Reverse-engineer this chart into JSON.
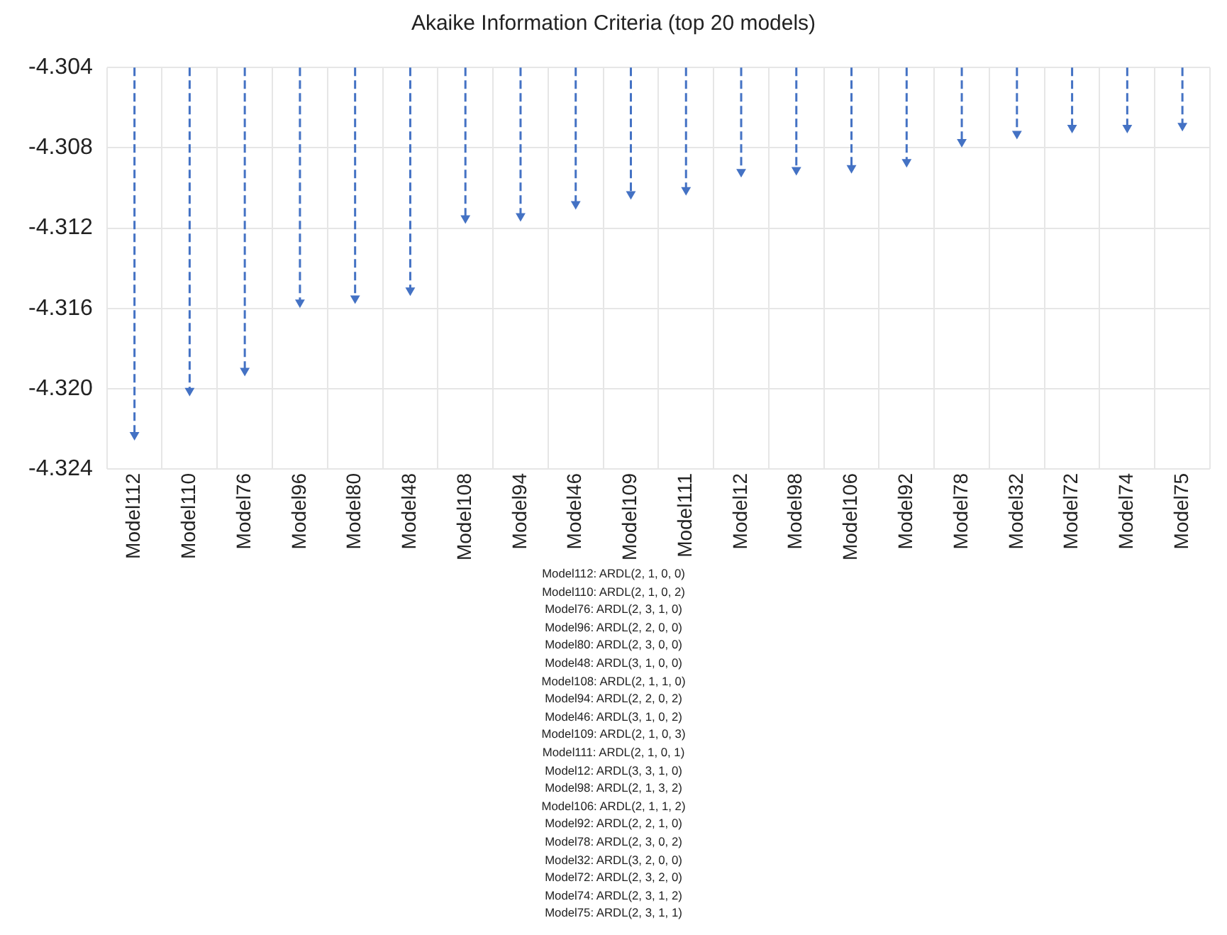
{
  "chart_data": {
    "type": "lollipop",
    "title": "Akaike Information Criteria (top 20 models)",
    "categories": [
      "Model112",
      "Model110",
      "Model76",
      "Model96",
      "Model80",
      "Model48",
      "Model108",
      "Model94",
      "Model46",
      "Model109",
      "Model111",
      "Model12",
      "Model98",
      "Model106",
      "Model92",
      "Model78",
      "Model32",
      "Model72",
      "Model74",
      "Model75"
    ],
    "values": [
      -4.3223,
      -4.3201,
      -4.3191,
      -4.3157,
      -4.3155,
      -4.3151,
      -4.3115,
      -4.3114,
      -4.3108,
      -4.3103,
      -4.3101,
      -4.3092,
      -4.3091,
      -4.309,
      -4.3087,
      -4.3077,
      -4.3073,
      -4.307,
      -4.307,
      -4.3069
    ],
    "color": "#4472c4",
    "ylim": [
      -4.324,
      -4.304
    ],
    "yticks": [
      -4.324,
      {
        "value": -4.32,
        "label": "-4.320"
      },
      -4.316,
      -4.312,
      -4.308,
      -4.304
    ],
    "grid": true,
    "marker": "triangle",
    "line_style": "dashed",
    "annotations": [
      "Model112: ARDL(2, 1, 0, 0)",
      "Model110: ARDL(2, 1, 0, 2)",
      "Model76: ARDL(2, 3, 1, 0)",
      "Model96: ARDL(2, 2, 0, 0)",
      "Model80: ARDL(2, 3, 0, 0)",
      "Model48: ARDL(3, 1, 0, 0)",
      "Model108: ARDL(2, 1, 1, 0)",
      "Model94: ARDL(2, 2, 0, 2)",
      "Model46: ARDL(3, 1, 0, 2)",
      "Model109: ARDL(2, 1, 0, 3)",
      "Model111: ARDL(2, 1, 0, 1)",
      "Model12: ARDL(3, 3, 1, 0)",
      "Model98: ARDL(2, 1, 3, 2)",
      "Model106: ARDL(2, 1, 1, 2)",
      "Model92: ARDL(2, 2, 1, 0)",
      "Model78: ARDL(2, 3, 0, 2)",
      "Model32: ARDL(3, 2, 0, 0)",
      "Model72: ARDL(2, 3, 2, 0)",
      "Model74: ARDL(2, 3, 1, 2)",
      "Model75: ARDL(2, 3, 1, 1)"
    ]
  }
}
